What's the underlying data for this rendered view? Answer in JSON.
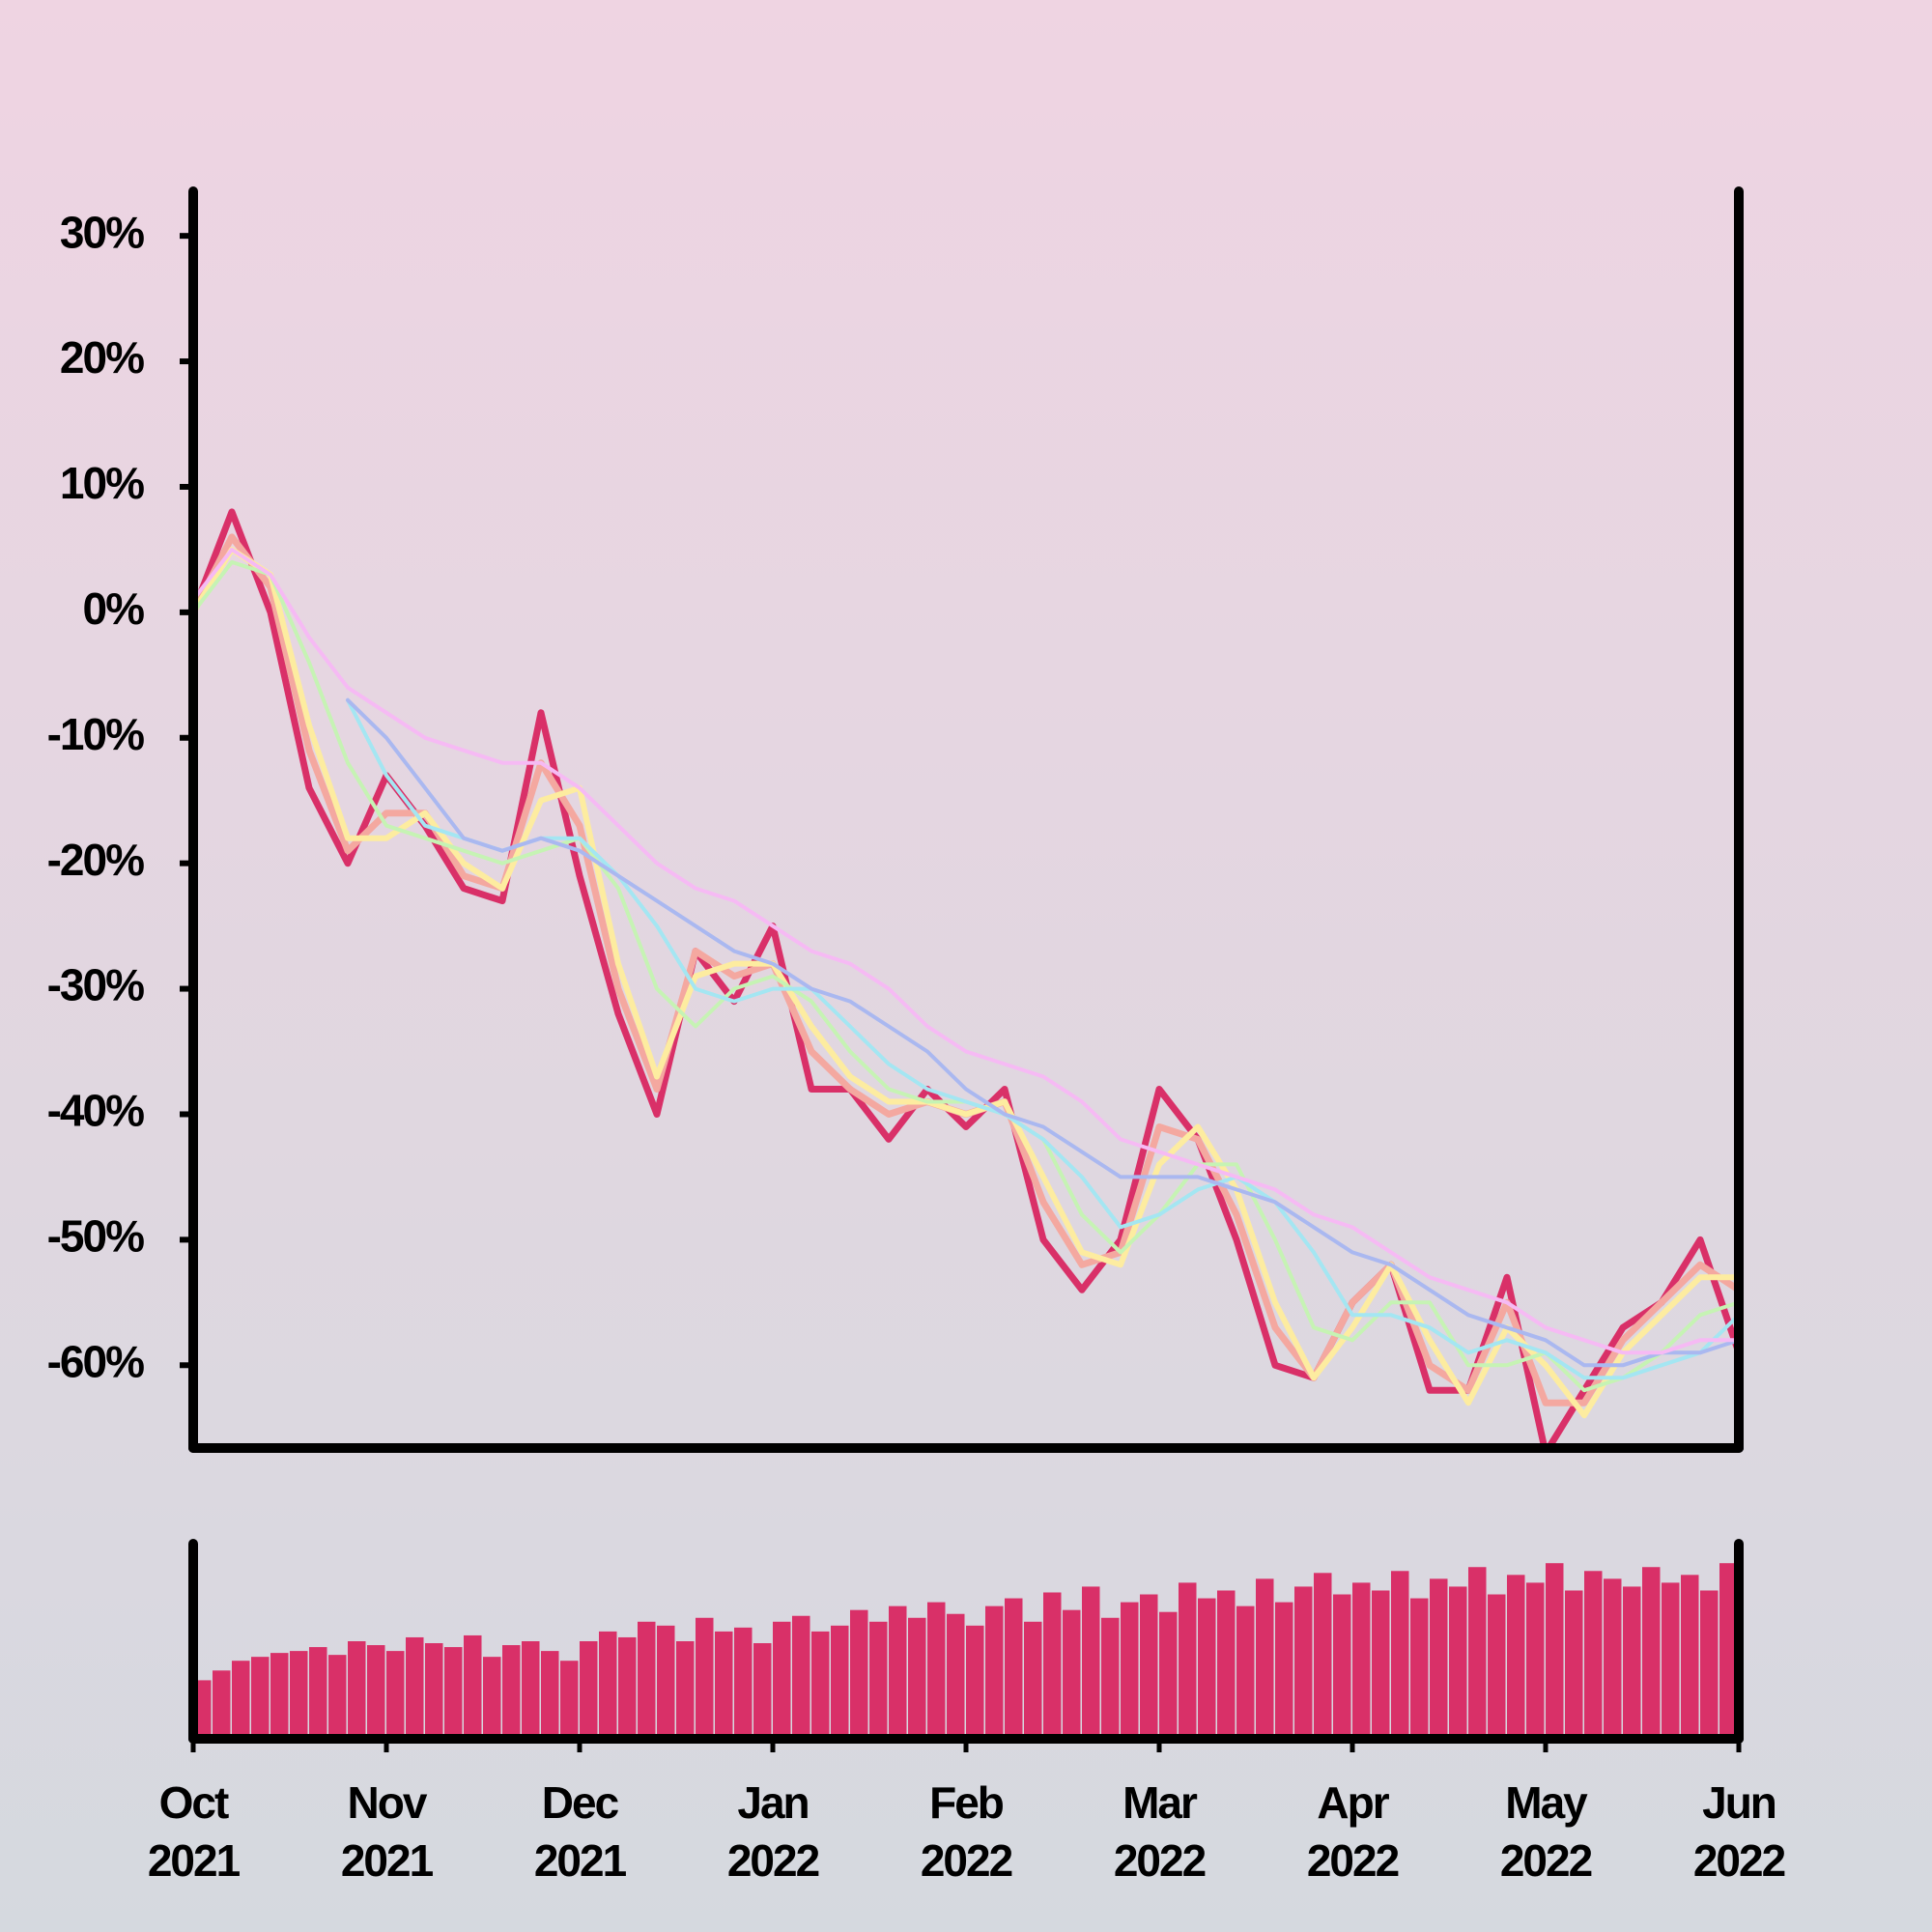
{
  "chart_data": [
    {
      "type": "line",
      "x": [
        0,
        0.2,
        0.4,
        0.6,
        0.8,
        1.0,
        1.2,
        1.4,
        1.6,
        1.8,
        2.0,
        2.2,
        2.4,
        2.6,
        2.8,
        3.0,
        3.2,
        3.4,
        3.6,
        3.8,
        4.0,
        4.2,
        4.4,
        4.6,
        4.8,
        5.0,
        5.2,
        5.4,
        5.6,
        5.8,
        6.0,
        6.2,
        6.4,
        6.6,
        6.8,
        7.0,
        7.2,
        7.4,
        7.6,
        7.8,
        8.0
      ],
      "series": [
        {
          "color": "#d93068",
          "values": [
            0,
            8,
            0,
            -14,
            -20,
            -13,
            -17,
            -22,
            -23,
            -8,
            -21,
            -32,
            -40,
            -27,
            -31,
            -25,
            -38,
            -38,
            -42,
            -38,
            -41,
            -38,
            -50,
            -54,
            -50,
            -38,
            -42,
            -50,
            -60,
            -61,
            -55,
            -52,
            -62,
            -62,
            -53,
            -67,
            -62,
            -57,
            -55,
            -50,
            -59
          ]
        },
        {
          "color": "#f4a8a0",
          "values": [
            0,
            6,
            2,
            -11,
            -19,
            -16,
            -16,
            -21,
            -22,
            -12,
            -17,
            -30,
            -38,
            -27,
            -29,
            -28,
            -35,
            -38,
            -40,
            -39,
            -40,
            -39,
            -47,
            -52,
            -51,
            -41,
            -42,
            -48,
            -57,
            -61,
            -55,
            -52,
            -60,
            -62,
            -55,
            -63,
            -63,
            -58,
            -55,
            -52,
            -54
          ]
        },
        {
          "color": "#fdeca0",
          "values": [
            0,
            5,
            3,
            -9,
            -18,
            -18,
            -16,
            -20,
            -22,
            -15,
            -14,
            -28,
            -37,
            -29,
            -28,
            -28,
            -33,
            -37,
            -39,
            -39,
            -40,
            -39,
            -45,
            -51,
            -52,
            -44,
            -41,
            -46,
            -55,
            -61,
            -57,
            -52,
            -58,
            -63,
            -57,
            -60,
            -64,
            -59,
            -56,
            -53,
            -53
          ]
        },
        {
          "color": "#c6f3b4",
          "values": [
            0,
            4,
            3,
            -4,
            -12,
            -17,
            -18,
            -19,
            -20,
            -19,
            -18,
            -22,
            -30,
            -33,
            -30,
            -29,
            -31,
            -35,
            -38,
            -39,
            -39,
            -40,
            -42,
            -48,
            -51,
            -48,
            -44,
            -44,
            -50,
            -57,
            -58,
            -55,
            -55,
            -60,
            -60,
            -59,
            -62,
            -61,
            -59,
            -56,
            -55
          ]
        },
        {
          "color": "#a4e6f2",
          "values": [
            null,
            null,
            null,
            null,
            -7,
            -13,
            -17,
            -18,
            -19,
            -18,
            -18,
            -21,
            -25,
            -30,
            -31,
            -30,
            -30,
            -33,
            -36,
            -38,
            -39,
            -40,
            -42,
            -45,
            -49,
            -48,
            -46,
            -45,
            -47,
            -51,
            -56,
            -56,
            -57,
            -59,
            -58,
            -59,
            -61,
            -61,
            -60,
            -59,
            -56
          ]
        },
        {
          "color": "#aab8f0",
          "values": [
            null,
            null,
            null,
            null,
            -7,
            -10,
            -14,
            -18,
            -19,
            -18,
            -19,
            -21,
            -23,
            -25,
            -27,
            -28,
            -30,
            -31,
            -33,
            -35,
            -38,
            -40,
            -41,
            -43,
            -45,
            -45,
            -45,
            -46,
            -47,
            -49,
            -51,
            -52,
            -54,
            -56,
            -57,
            -58,
            -60,
            -60,
            -59,
            -59,
            -58
          ]
        },
        {
          "color": "#f6baf4",
          "values": [
            1,
            5,
            3,
            -2,
            -6,
            -8,
            -10,
            -11,
            -12,
            -12,
            -14,
            -17,
            -20,
            -22,
            -23,
            -25,
            -27,
            -28,
            -30,
            -33,
            -35,
            -36,
            -37,
            -39,
            -42,
            -43,
            -44,
            -45,
            -46,
            -48,
            -49,
            -51,
            -53,
            -54,
            -55,
            -57,
            -58,
            -59,
            -59,
            -58,
            -58
          ]
        }
      ],
      "xlim": [
        0,
        8
      ],
      "ylim": [
        -66.6,
        33.4
      ],
      "yticks": [
        {
          "value": 30,
          "label": "30%"
        },
        {
          "value": 20,
          "label": "20%"
        },
        {
          "value": 10,
          "label": "10%"
        },
        {
          "value": 0,
          "label": "0%"
        },
        {
          "value": -10,
          "label": "-10%"
        },
        {
          "value": -20,
          "label": "-20%"
        },
        {
          "value": -30,
          "label": "-30%"
        },
        {
          "value": -40,
          "label": "-40%"
        },
        {
          "value": -50,
          "label": "-50%"
        },
        {
          "value": -60,
          "label": "-60%"
        }
      ]
    },
    {
      "type": "bar",
      "color": "#d93068",
      "x": [
        0.05,
        0.15,
        0.25,
        0.35,
        0.45,
        0.55,
        0.65,
        0.75,
        0.85,
        0.95,
        1.05,
        1.15,
        1.25,
        1.35,
        1.45,
        1.55,
        1.65,
        1.75,
        1.85,
        1.95,
        2.05,
        2.15,
        2.25,
        2.35,
        2.45,
        2.55,
        2.65,
        2.75,
        2.85,
        2.95,
        3.05,
        3.15,
        3.25,
        3.35,
        3.45,
        3.55,
        3.65,
        3.75,
        3.85,
        3.95,
        4.05,
        4.15,
        4.25,
        4.35,
        4.45,
        4.55,
        4.65,
        4.75,
        4.85,
        4.95,
        5.05,
        5.15,
        5.25,
        5.35,
        5.45,
        5.55,
        5.65,
        5.75,
        5.85,
        5.95,
        6.05,
        6.15,
        6.25,
        6.35,
        6.45,
        6.55,
        6.65,
        6.75,
        6.85,
        6.95,
        7.05,
        7.15,
        7.25,
        7.35,
        7.45,
        7.55,
        7.65,
        7.75,
        7.85,
        7.95
      ],
      "values": [
        30,
        35,
        40,
        42,
        44,
        45,
        47,
        43,
        50,
        48,
        45,
        52,
        49,
        47,
        53,
        42,
        48,
        50,
        45,
        40,
        50,
        55,
        52,
        60,
        58,
        50,
        62,
        55,
        57,
        49,
        60,
        63,
        55,
        58,
        66,
        60,
        68,
        62,
        70,
        64,
        58,
        68,
        72,
        60,
        75,
        66,
        78,
        62,
        70,
        74,
        65,
        80,
        72,
        76,
        68,
        82,
        70,
        78,
        85,
        74,
        80,
        76,
        86,
        72,
        82,
        78,
        88,
        74,
        84,
        80,
        90,
        76,
        86,
        82,
        78,
        88,
        80,
        84,
        76,
        90
      ],
      "xlim": [
        0,
        8
      ],
      "ylim": [
        0,
        100
      ],
      "xticks": [
        {
          "value": 0,
          "label": "Oct",
          "year": "2021"
        },
        {
          "value": 1,
          "label": "Nov",
          "year": "2021"
        },
        {
          "value": 2,
          "label": "Dec",
          "year": "2021"
        },
        {
          "value": 3,
          "label": "Jan",
          "year": "2022"
        },
        {
          "value": 4,
          "label": "Feb",
          "year": "2022"
        },
        {
          "value": 5,
          "label": "Mar",
          "year": "2022"
        },
        {
          "value": 6,
          "label": "Apr",
          "year": "2022"
        },
        {
          "value": 7,
          "label": "May",
          "year": "2022"
        },
        {
          "value": 8,
          "label": "Jun",
          "year": "2022"
        }
      ]
    }
  ]
}
